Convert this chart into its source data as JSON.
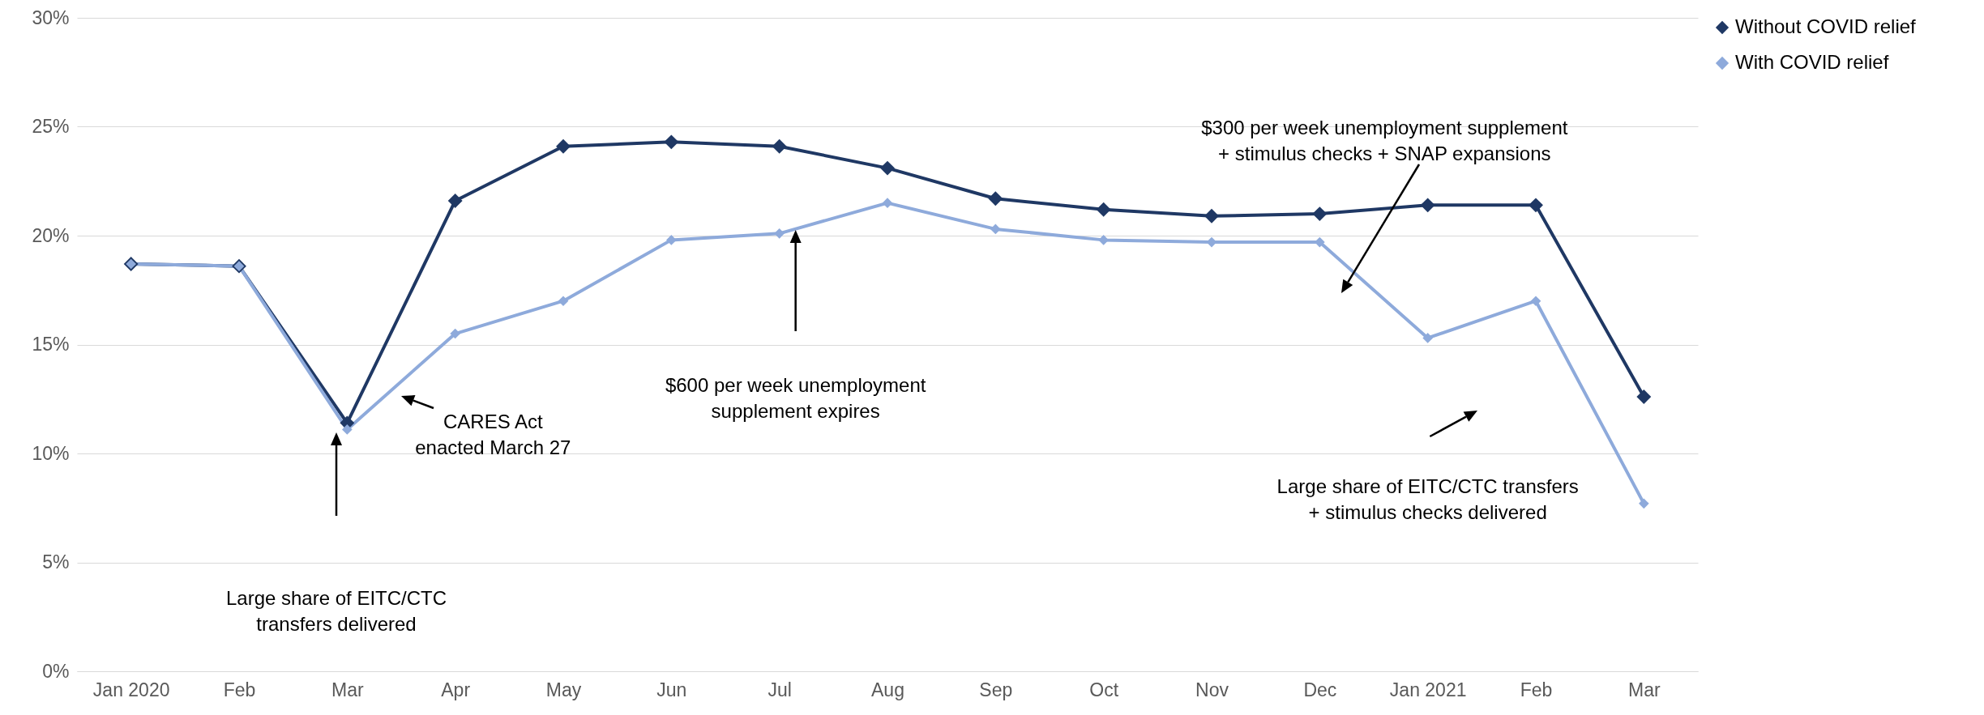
{
  "chart_data": {
    "type": "line",
    "categories": [
      "Jan 2020",
      "Feb",
      "Mar",
      "Apr",
      "May",
      "Jun",
      "Jul",
      "Aug",
      "Sep",
      "Oct",
      "Nov",
      "Dec",
      "Jan 2021",
      "Feb",
      "Mar"
    ],
    "series": [
      {
        "name": "Without COVID relief",
        "color": "#1f3864",
        "values": [
          18.7,
          18.6,
          11.4,
          21.6,
          24.1,
          24.3,
          24.1,
          23.1,
          21.7,
          21.2,
          20.9,
          21.0,
          21.4,
          21.4,
          12.6
        ]
      },
      {
        "name": "With COVID relief",
        "color": "#8eaadb",
        "values": [
          18.7,
          18.6,
          11.1,
          15.5,
          17.0,
          19.8,
          20.1,
          21.5,
          20.3,
          19.8,
          19.7,
          19.7,
          15.3,
          17.0,
          7.7
        ]
      }
    ],
    "ylim": [
      0,
      30
    ],
    "yticks": [
      {
        "value": 0,
        "label": "0%"
      },
      {
        "value": 5,
        "label": "5%"
      },
      {
        "value": 10,
        "label": "10%"
      },
      {
        "value": 15,
        "label": "15%"
      },
      {
        "value": 20,
        "label": "20%"
      },
      {
        "value": 25,
        "label": "25%"
      },
      {
        "value": 30,
        "label": "30%"
      }
    ],
    "grid": "y",
    "legend": "right",
    "marker": "diamond",
    "line_style": "solid",
    "annotations": [
      "CARES Act\nenacted March 27",
      "Large share of EITC/CTC\ntransfers delivered",
      "$600 per week unemployment\nsupplement expires",
      "$300 per week unemployment supplement\n+ stimulus checks + SNAP expansions",
      "Large share of EITC/CTC transfers\n+ stimulus checks delivered"
    ]
  }
}
